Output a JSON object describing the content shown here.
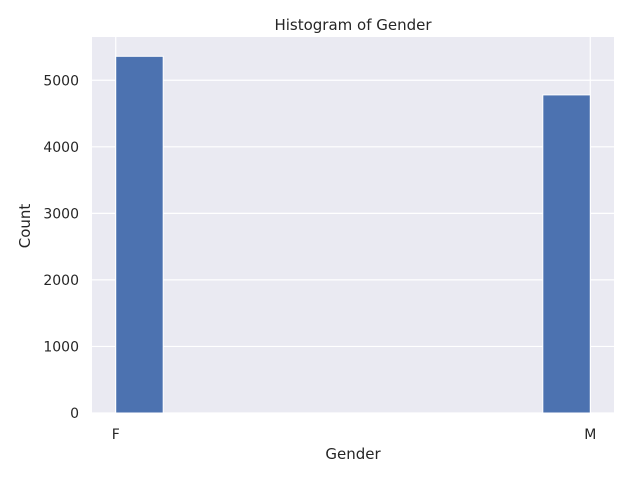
{
  "chart_data": {
    "type": "bar",
    "title": "Histogram of Gender",
    "xlabel": "Gender",
    "ylabel": "Count",
    "categories": [
      "F",
      "M"
    ],
    "values": [
      5360,
      4780
    ],
    "ylim": [
      0,
      5650
    ],
    "yticks": [
      0,
      1000,
      2000,
      3000,
      4000,
      5000
    ],
    "grid": true,
    "colors": {
      "bar": "#4c72b0",
      "plot_background": "#eaeaf2",
      "grid": "#ffffff",
      "text": "#262626"
    }
  }
}
